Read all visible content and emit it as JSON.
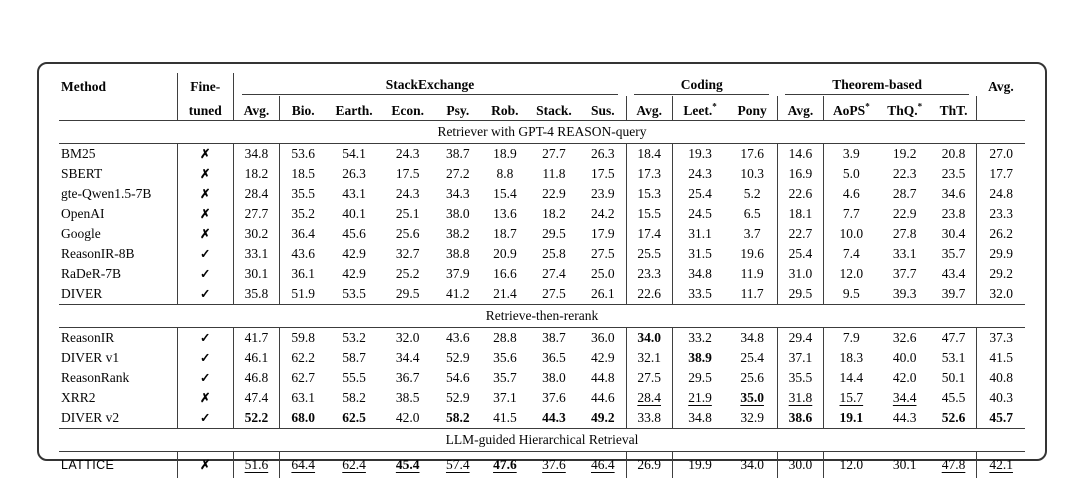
{
  "colors": {
    "card_border": "#343434",
    "rule": "#3c3c3c",
    "text": "#050505",
    "background": "#ffffff"
  },
  "table": {
    "header": {
      "method": "Method",
      "finetuned_top": "Fine-",
      "finetuned_bottom": "tuned",
      "groups": {
        "stackexchange": "StackExchange",
        "coding": "Coding",
        "theorem": "Theorem-based"
      },
      "overall_avg": "Avg.",
      "subcolumns": {
        "stackexchange": [
          {
            "text": "Avg."
          },
          {
            "text": "Bio."
          },
          {
            "text": "Earth."
          },
          {
            "text": "Econ."
          },
          {
            "text": "Psy."
          },
          {
            "text": "Rob."
          },
          {
            "text": "Stack."
          },
          {
            "text": "Sus."
          }
        ],
        "coding": [
          {
            "text": "Avg."
          },
          {
            "text": "Leet.",
            "sup": "*"
          },
          {
            "text": "Pony"
          }
        ],
        "theorem": [
          {
            "text": "Avg."
          },
          {
            "text": "AoPS",
            "sup": "*"
          },
          {
            "text": "ThQ.",
            "sup": "*"
          },
          {
            "text": "ThT."
          }
        ]
      }
    },
    "checkmark": {
      "yes": "✓",
      "no": "✗"
    },
    "sections": [
      {
        "title": "Retriever with GPT-4 REASON-query",
        "rows": [
          {
            "method": "BM25",
            "finetuned": false,
            "values": [
              "34.8",
              "53.6",
              "54.1",
              "24.3",
              "38.7",
              "18.9",
              "27.7",
              "26.3",
              "18.4",
              "19.3",
              "17.6",
              "14.6",
              "3.9",
              "19.2",
              "20.8",
              "27.0"
            ],
            "bold": [],
            "underline": []
          },
          {
            "method": "SBERT",
            "finetuned": false,
            "values": [
              "18.2",
              "18.5",
              "26.3",
              "17.5",
              "27.2",
              "8.8",
              "11.8",
              "17.5",
              "17.3",
              "24.3",
              "10.3",
              "16.9",
              "5.0",
              "22.3",
              "23.5",
              "17.7"
            ],
            "bold": [],
            "underline": []
          },
          {
            "method": "gte-Qwen1.5-7B",
            "finetuned": false,
            "values": [
              "28.4",
              "35.5",
              "43.1",
              "24.3",
              "34.3",
              "15.4",
              "22.9",
              "23.9",
              "15.3",
              "25.4",
              "5.2",
              "22.6",
              "4.6",
              "28.7",
              "34.6",
              "24.8"
            ],
            "bold": [],
            "underline": []
          },
          {
            "method": "OpenAI",
            "finetuned": false,
            "values": [
              "27.7",
              "35.2",
              "40.1",
              "25.1",
              "38.0",
              "13.6",
              "18.2",
              "24.2",
              "15.5",
              "24.5",
              "6.5",
              "18.1",
              "7.7",
              "22.9",
              "23.8",
              "23.3"
            ],
            "bold": [],
            "underline": []
          },
          {
            "method": "Google",
            "finetuned": false,
            "values": [
              "30.2",
              "36.4",
              "45.6",
              "25.6",
              "38.2",
              "18.7",
              "29.5",
              "17.9",
              "17.4",
              "31.1",
              "3.7",
              "22.7",
              "10.0",
              "27.8",
              "30.4",
              "26.2"
            ],
            "bold": [],
            "underline": []
          },
          {
            "method": "ReasonIR-8B",
            "finetuned": true,
            "values": [
              "33.1",
              "43.6",
              "42.9",
              "32.7",
              "38.8",
              "20.9",
              "25.8",
              "27.5",
              "25.5",
              "31.5",
              "19.6",
              "25.4",
              "7.4",
              "33.1",
              "35.7",
              "29.9"
            ],
            "bold": [],
            "underline": []
          },
          {
            "method": "RaDeR-7B",
            "finetuned": true,
            "values": [
              "30.1",
              "36.1",
              "42.9",
              "25.2",
              "37.9",
              "16.6",
              "27.4",
              "25.0",
              "23.3",
              "34.8",
              "11.9",
              "31.0",
              "12.0",
              "37.7",
              "43.4",
              "29.2"
            ],
            "bold": [],
            "underline": []
          },
          {
            "method": "DIVER",
            "finetuned": true,
            "values": [
              "35.8",
              "51.9",
              "53.5",
              "29.5",
              "41.2",
              "21.4",
              "27.5",
              "26.1",
              "22.6",
              "33.5",
              "11.7",
              "29.5",
              "9.5",
              "39.3",
              "39.7",
              "32.0"
            ],
            "bold": [],
            "underline": []
          }
        ]
      },
      {
        "title": "Retrieve-then-rerank",
        "rows": [
          {
            "method": "ReasonIR",
            "finetuned": true,
            "values": [
              "41.7",
              "59.8",
              "53.2",
              "32.0",
              "43.6",
              "28.8",
              "38.7",
              "36.0",
              "34.0",
              "33.2",
              "34.8",
              "29.4",
              "7.9",
              "32.6",
              "47.7",
              "37.3"
            ],
            "bold": [
              8
            ],
            "underline": []
          },
          {
            "method": "DIVER v1",
            "finetuned": true,
            "values": [
              "46.1",
              "62.2",
              "58.7",
              "34.4",
              "52.9",
              "35.6",
              "36.5",
              "42.9",
              "32.1",
              "38.9",
              "25.4",
              "37.1",
              "18.3",
              "40.0",
              "53.1",
              "41.5"
            ],
            "bold": [
              9
            ],
            "underline": []
          },
          {
            "method": "ReasonRank",
            "finetuned": true,
            "values": [
              "46.8",
              "62.7",
              "55.5",
              "36.7",
              "54.6",
              "35.7",
              "38.0",
              "44.8",
              "27.5",
              "29.5",
              "25.6",
              "35.5",
              "14.4",
              "42.0",
              "50.1",
              "40.8"
            ],
            "bold": [],
            "underline": []
          },
          {
            "method": "XRR2",
            "finetuned": false,
            "values": [
              "47.4",
              "63.1",
              "58.2",
              "38.5",
              "52.9",
              "37.1",
              "37.6",
              "44.6",
              "28.4",
              "21.9",
              "35.0",
              "31.8",
              "15.7",
              "34.4",
              "45.5",
              "40.3"
            ],
            "bold": [
              10
            ],
            "underline": [
              8,
              9,
              10,
              11,
              12,
              13
            ]
          },
          {
            "method": "DIVER v2",
            "finetuned": true,
            "values": [
              "52.2",
              "68.0",
              "62.5",
              "42.0",
              "58.2",
              "41.5",
              "44.3",
              "49.2",
              "33.8",
              "34.8",
              "32.9",
              "38.6",
              "19.1",
              "44.3",
              "52.6",
              "45.7"
            ],
            "bold": [
              0,
              1,
              2,
              4,
              6,
              7,
              11,
              12,
              14,
              15
            ],
            "underline": []
          }
        ]
      },
      {
        "title": "LLM-guided Hierarchical Retrieval",
        "rows": [
          {
            "method": "LATTICE",
            "finetuned": false,
            "method_style": "sans",
            "values": [
              "51.6",
              "64.4",
              "62.4",
              "45.4",
              "57.4",
              "47.6",
              "37.6",
              "46.4",
              "26.9",
              "19.9",
              "34.0",
              "30.0",
              "12.0",
              "30.1",
              "47.8",
              "42.1"
            ],
            "bold": [
              3,
              5
            ],
            "underline": [
              0,
              1,
              2,
              3,
              4,
              5,
              6,
              7,
              14,
              15
            ]
          }
        ]
      }
    ]
  }
}
